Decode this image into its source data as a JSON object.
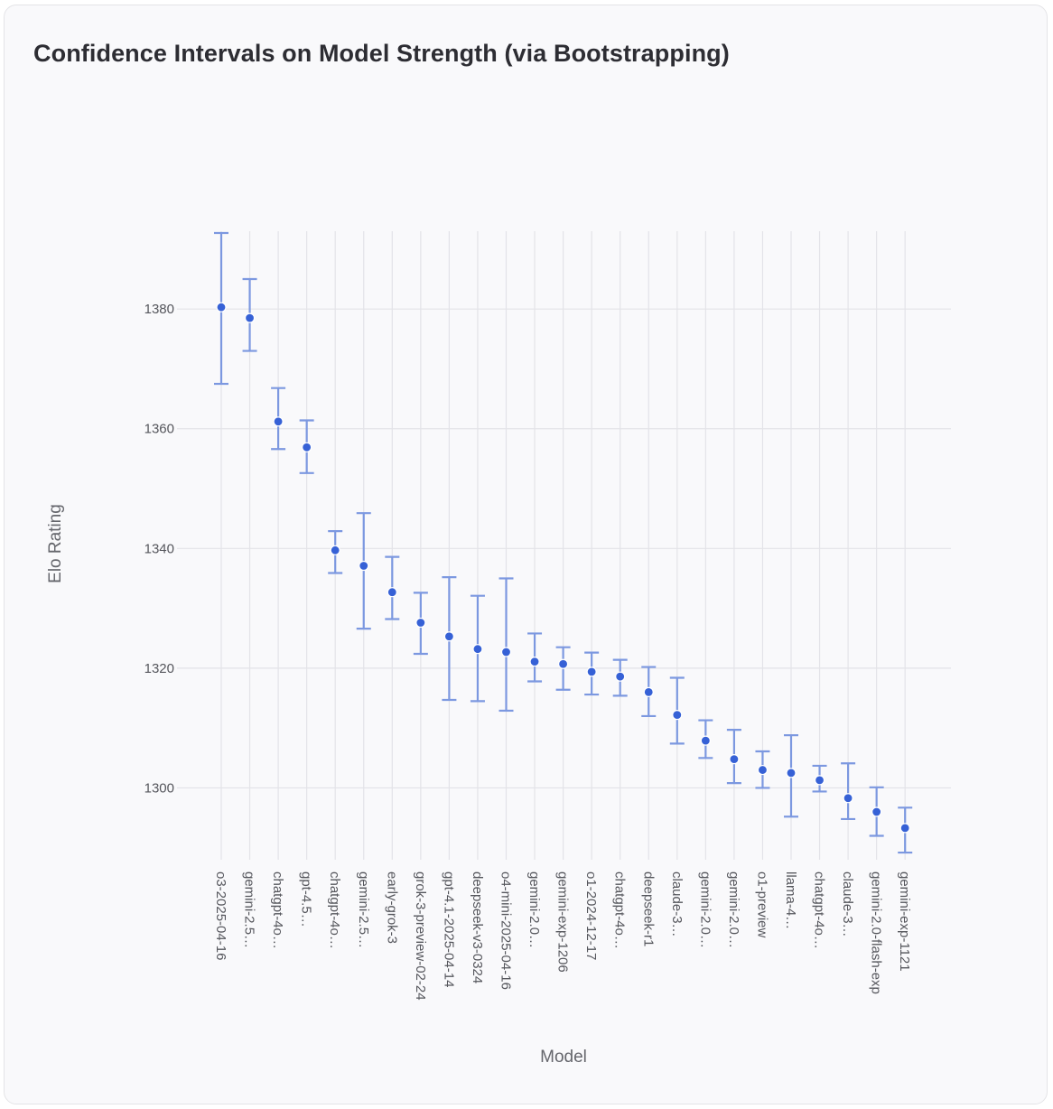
{
  "card": {
    "title": "Confidence Intervals on Model Strength (via Bootstrapping)"
  },
  "colors": {
    "point": "#3661d6",
    "errorbar": "#7c98e0",
    "grid": "#e3e3e8",
    "background": "#f9f9fb"
  },
  "chart_data": {
    "type": "scatter",
    "title": "",
    "xlabel": "Model",
    "ylabel": "Elo Rating",
    "ylim": [
      1288,
      1393
    ],
    "yticks": [
      1300,
      1320,
      1340,
      1360,
      1380
    ],
    "grid": true,
    "error_bars": true,
    "categories": [
      "o3-2025-04-16",
      "gemini-2.5…",
      "chatgpt-4o…",
      "gpt-4.5…",
      "chatgpt-4o…",
      "gemini-2.5…",
      "early-grok-3",
      "grok-3-preview-02-24",
      "gpt-4.1-2025-04-14",
      "deepseek-v3-0324",
      "o4-mini-2025-04-16",
      "gemini-2.0…",
      "gemini-exp-1206",
      "o1-2024-12-17",
      "chatgpt-4o…",
      "deepseek-r1",
      "claude-3…",
      "gemini-2.0…",
      "gemini-2.0…",
      "o1-preview",
      "llama-4…",
      "chatgpt-4o…",
      "claude-3…",
      "gemini-2.0-flash-exp",
      "gemini-exp-1121"
    ],
    "values": [
      1380.3,
      1378.5,
      1361.2,
      1356.9,
      1339.7,
      1337.1,
      1332.7,
      1327.6,
      1325.3,
      1323.2,
      1322.7,
      1321.1,
      1320.7,
      1319.4,
      1318.6,
      1316.0,
      1312.2,
      1307.9,
      1304.8,
      1303.0,
      1302.5,
      1301.3,
      1298.3,
      1296.0,
      1293.3
    ],
    "upper": [
      1392.7,
      1385.0,
      1366.8,
      1361.4,
      1342.9,
      1345.9,
      1338.6,
      1332.6,
      1335.2,
      1332.1,
      1335.0,
      1325.8,
      1323.5,
      1322.6,
      1321.4,
      1320.2,
      1318.4,
      1311.3,
      1309.7,
      1306.1,
      1308.8,
      1303.7,
      1304.1,
      1300.1,
      1296.7
    ],
    "lower": [
      1367.5,
      1373.0,
      1356.6,
      1352.6,
      1335.9,
      1326.6,
      1328.2,
      1322.4,
      1314.7,
      1314.5,
      1312.9,
      1317.8,
      1316.4,
      1315.6,
      1315.4,
      1312.0,
      1307.4,
      1305.0,
      1300.8,
      1300.0,
      1295.2,
      1299.4,
      1294.8,
      1292.0,
      1289.2
    ]
  }
}
